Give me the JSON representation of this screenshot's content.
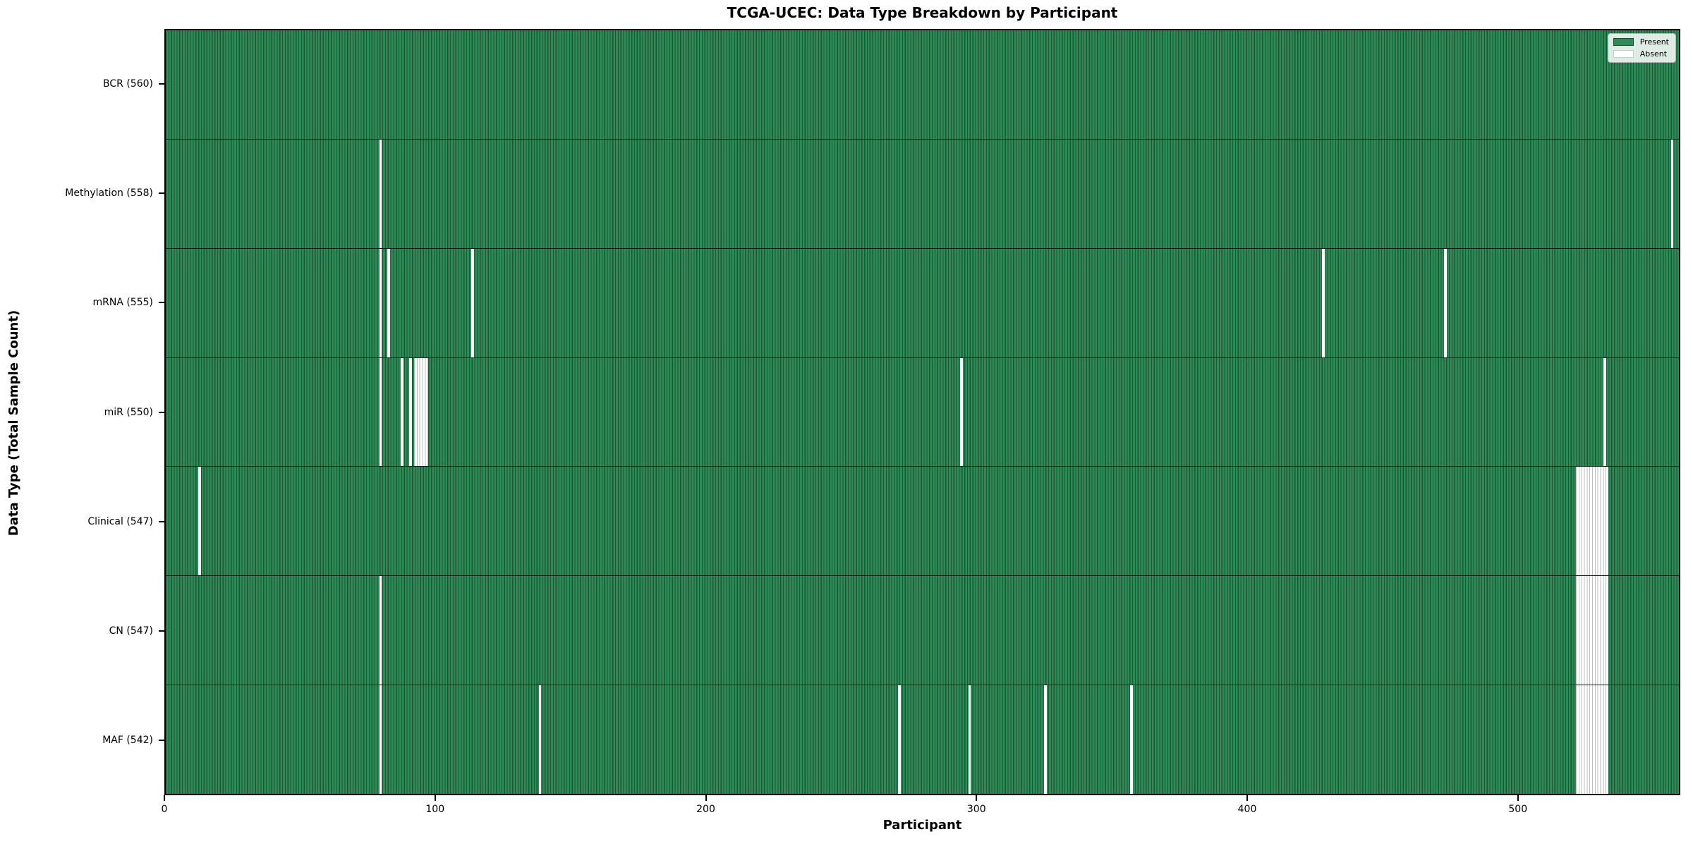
{
  "title": "TCGA-UCEC: Data Type Breakdown by Participant",
  "xlabel": "Participant",
  "ylabel": "Data Type (Total Sample Count)",
  "legend": {
    "present_label": "Present",
    "absent_label": "Absent"
  },
  "colors": {
    "present": "#2e8b57",
    "present_edge": "#1c5634",
    "absent": "#ffffff",
    "absent_edge": "#bdbdbd"
  },
  "chart_data": {
    "type": "heatmap",
    "legend_position": "upper right",
    "x_axis_range": [
      0,
      560
    ],
    "x_ticks": [
      0,
      100,
      200,
      300,
      400,
      500
    ],
    "n_participants": 560,
    "rows": [
      {
        "name": "BCR",
        "label": "BCR (560)",
        "present_count": 560,
        "absent_participants": []
      },
      {
        "name": "Methylation",
        "label": "Methylation (558)",
        "present_count": 558,
        "absent_participants": [
          79,
          557
        ]
      },
      {
        "name": "mRNA",
        "label": "mRNA (555)",
        "present_count": 555,
        "absent_participants": [
          79,
          82,
          113,
          428,
          473
        ]
      },
      {
        "name": "miR",
        "label": "miR (550)",
        "present_count": 550,
        "absent_participants": [
          79,
          87,
          90,
          92,
          93,
          94,
          95,
          96,
          294,
          532
        ]
      },
      {
        "name": "Clinical",
        "label": "Clinical (547)",
        "present_count": 547,
        "absent_participants": [
          12,
          522,
          523,
          524,
          525,
          526,
          527,
          528,
          529,
          530,
          531,
          532,
          533
        ]
      },
      {
        "name": "CN",
        "label": "CN (547)",
        "present_count": 547,
        "absent_participants": [
          79,
          522,
          523,
          524,
          525,
          526,
          527,
          528,
          529,
          530,
          531,
          532,
          533
        ]
      },
      {
        "name": "MAF",
        "label": "MAF (542)",
        "present_count": 542,
        "absent_participants": [
          79,
          138,
          271,
          297,
          325,
          357,
          522,
          523,
          524,
          525,
          526,
          527,
          528,
          529,
          530,
          531,
          532,
          533
        ]
      }
    ]
  }
}
